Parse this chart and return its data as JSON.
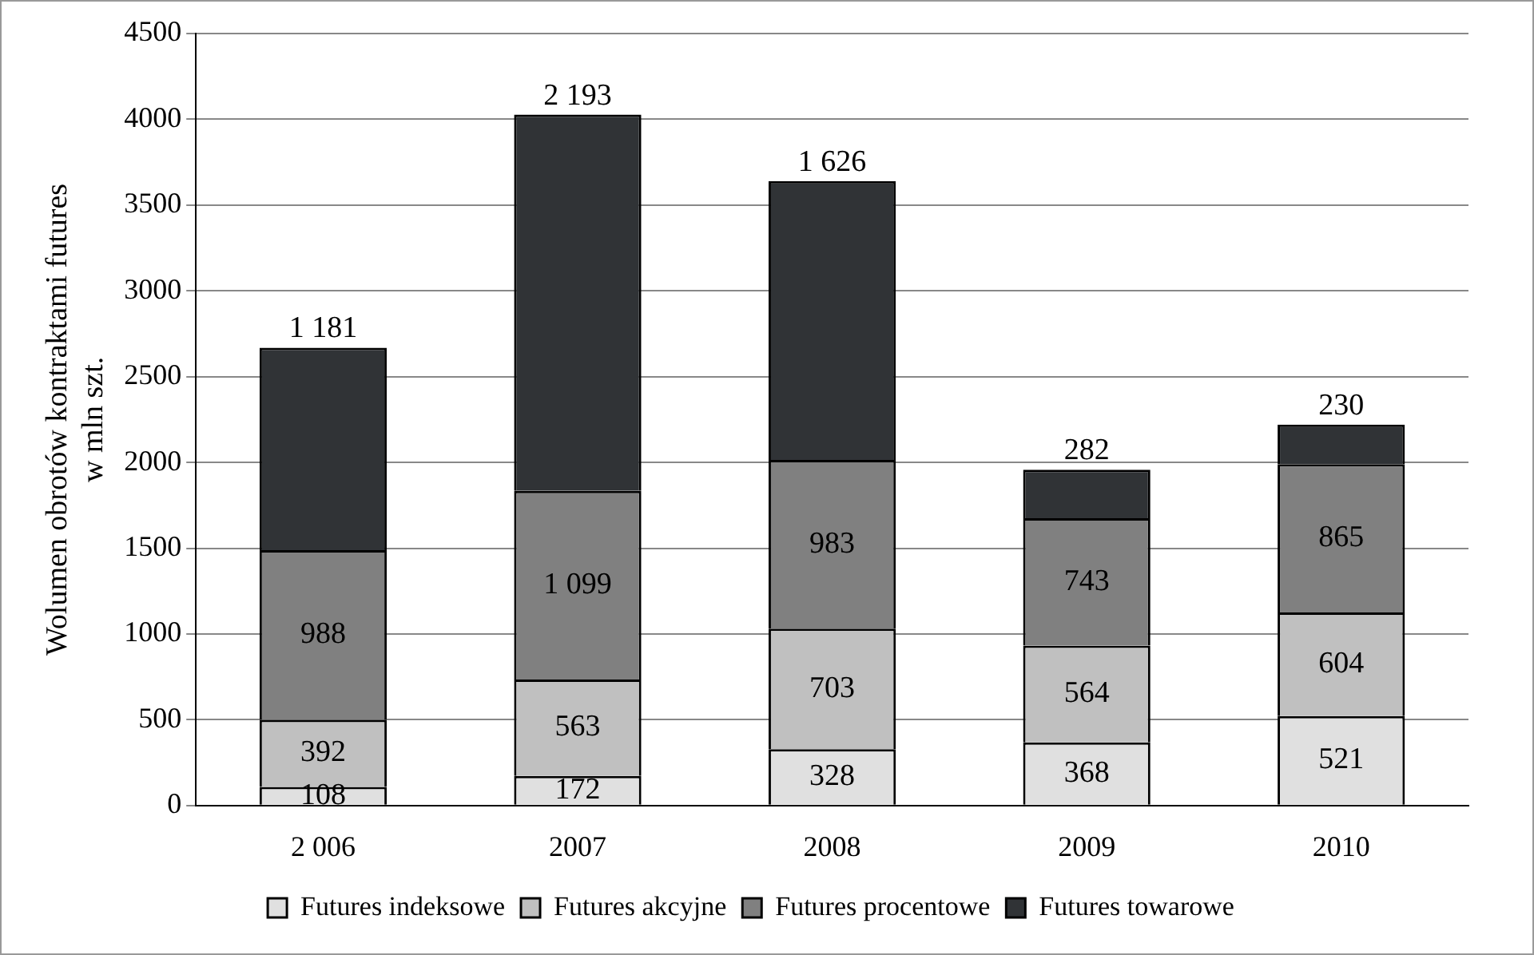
{
  "chart_data": {
    "type": "bar",
    "stacked": true,
    "ylabel": "Wolumen obrotów kontraktami futures\nw mln szt.",
    "categories": [
      "2 006",
      "2007",
      "2008",
      "2009",
      "2010"
    ],
    "series": [
      {
        "name": "Futures indeksowe",
        "color": "#e0e0e0",
        "values": [
          108,
          172,
          328,
          368,
          521
        ],
        "value_labels": [
          "108",
          "172",
          "328",
          "368",
          "521"
        ]
      },
      {
        "name": "Futures akcyjne",
        "color": "#c0c0c0",
        "values": [
          392,
          563,
          703,
          564,
          604
        ],
        "value_labels": [
          "392",
          "563",
          "703",
          "564",
          "604"
        ]
      },
      {
        "name": "Futures procentowe",
        "color": "#808080",
        "values": [
          988,
          1099,
          983,
          743,
          865
        ],
        "value_labels": [
          "988",
          "1 099",
          "983",
          "743",
          "865"
        ]
      },
      {
        "name": "Futures towarowe",
        "color": "#303336",
        "values": [
          1181,
          2193,
          1626,
          282,
          230
        ],
        "value_labels": [
          "1 181",
          "2 193",
          "1 626",
          "282",
          "230"
        ]
      }
    ],
    "ylim": [
      0,
      4500
    ],
    "yticks": [
      0,
      500,
      1000,
      1500,
      2000,
      2500,
      3000,
      3500,
      4000,
      4500
    ],
    "grid": "y",
    "legend": "bottom"
  }
}
